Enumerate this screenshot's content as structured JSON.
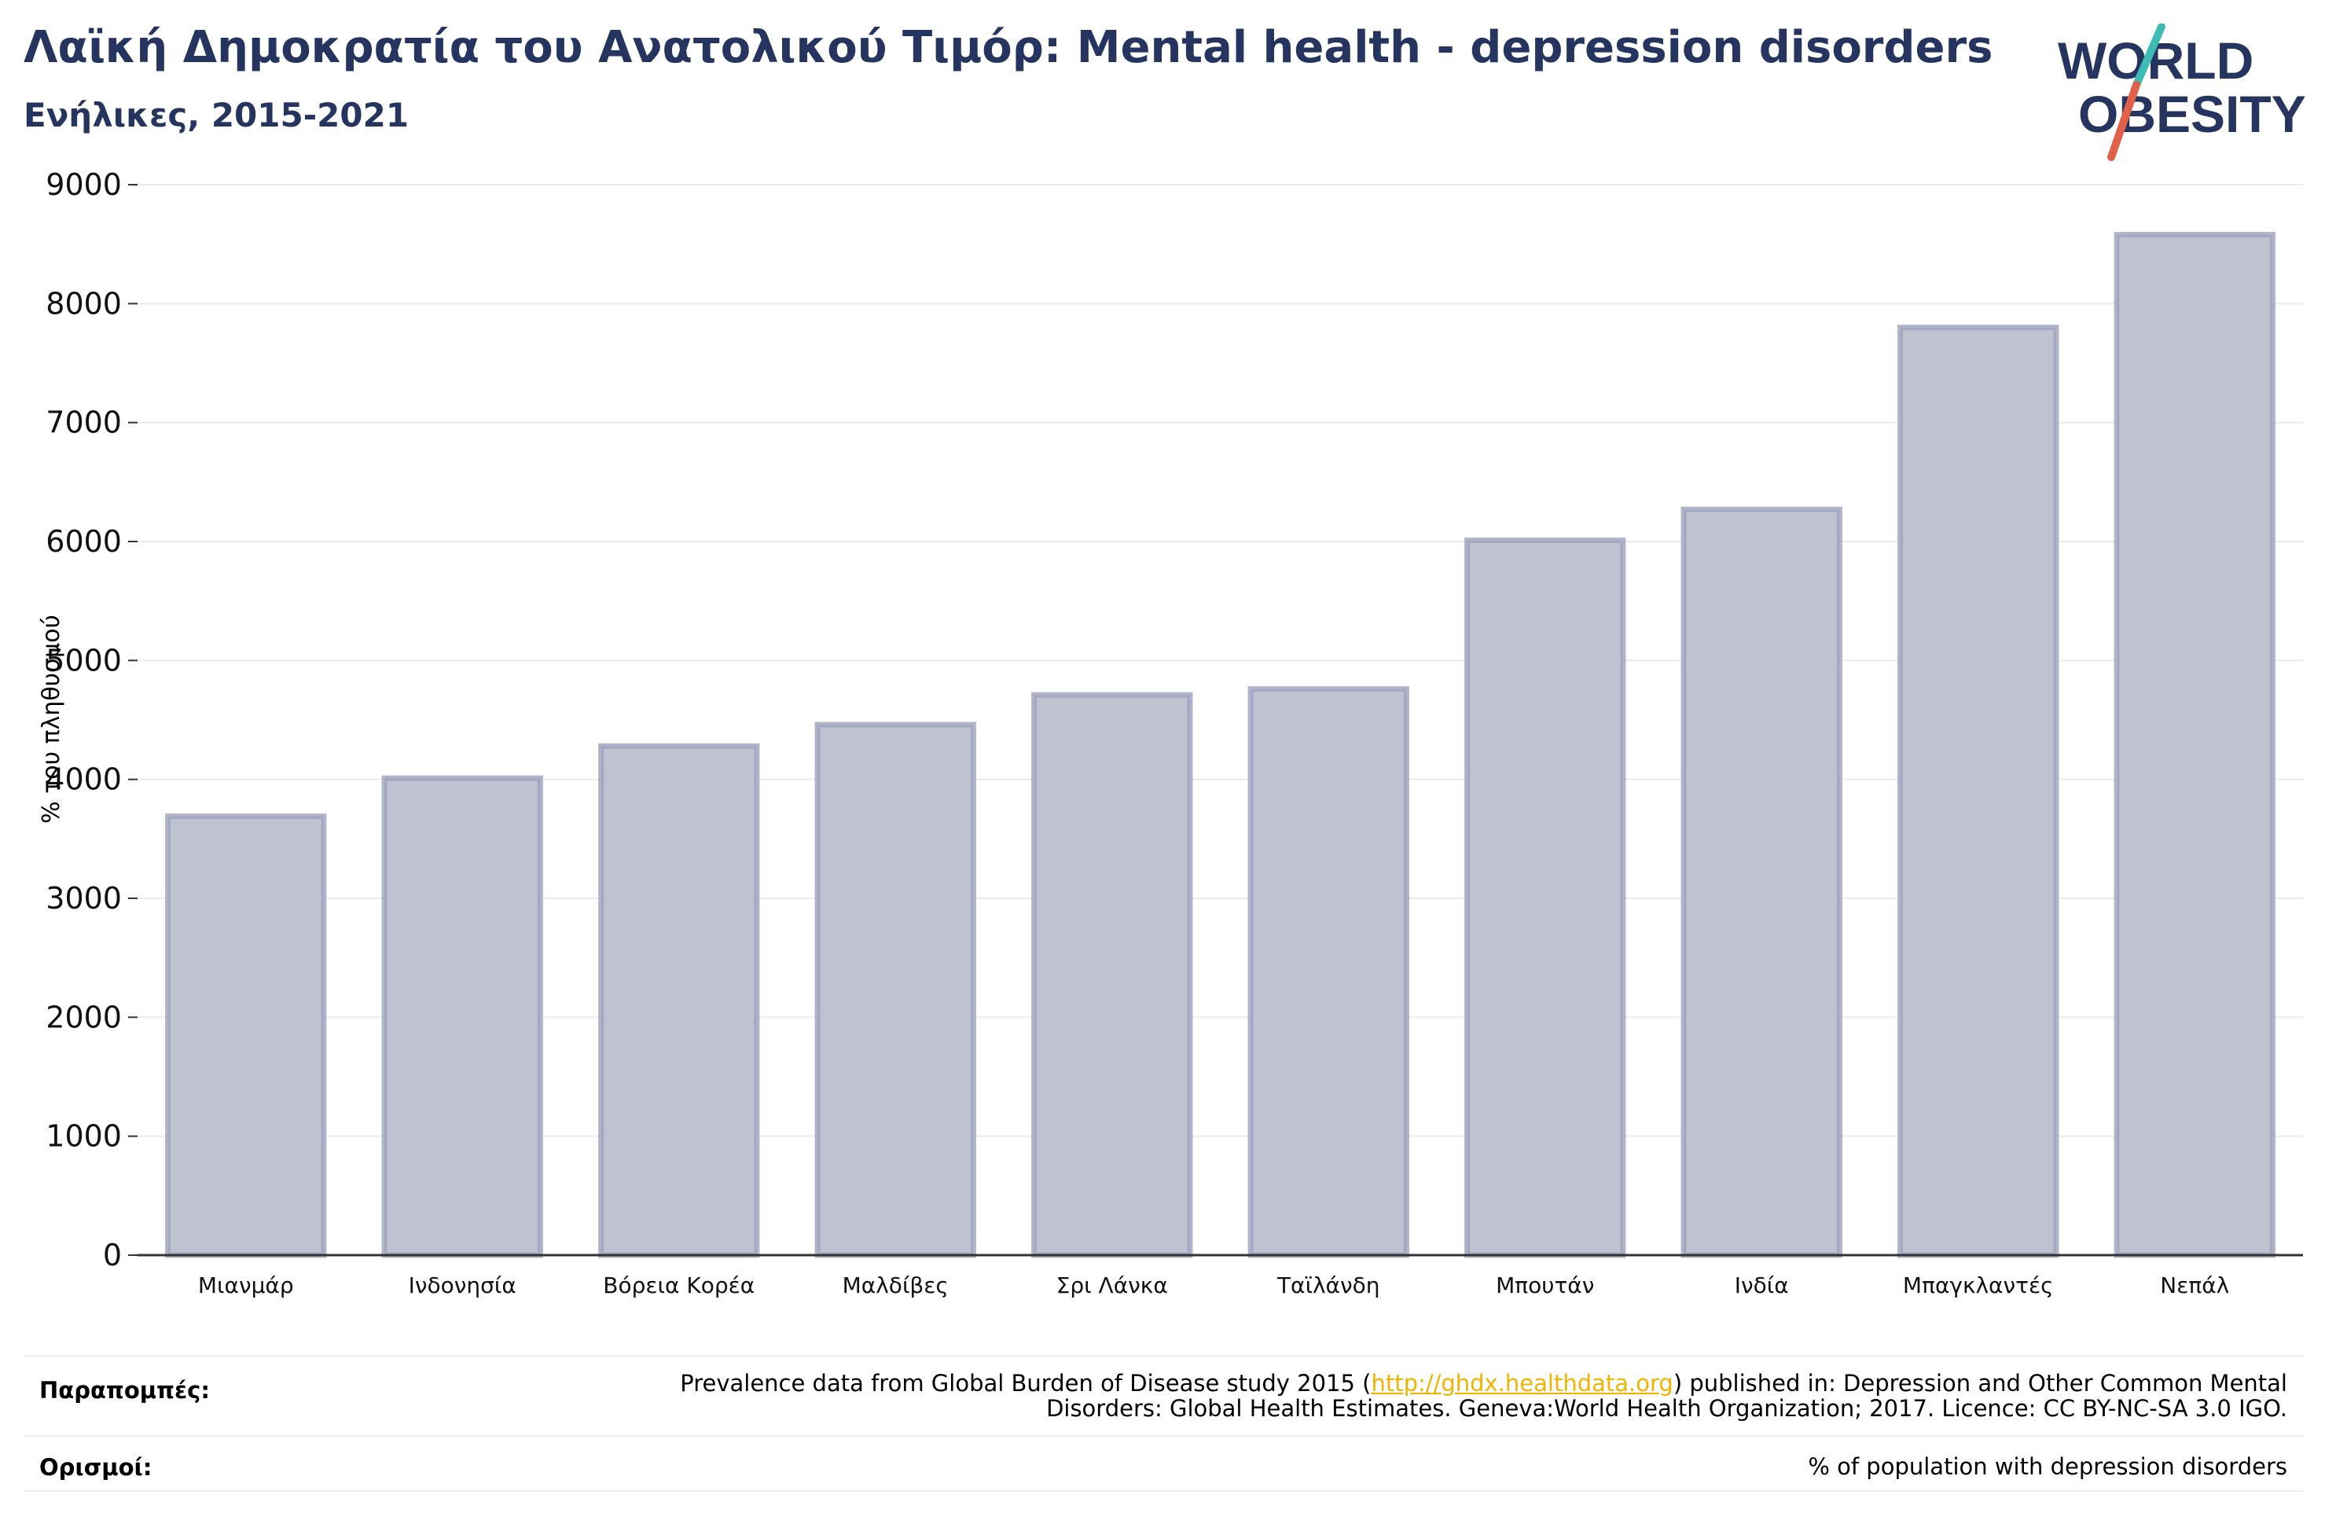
{
  "header": {
    "title": "Λαϊκή Δημοκρατία του Ανατολικού Τιμόρ: Mental health - depression disorders",
    "subtitle": "Ενήλικες, 2015-2021"
  },
  "logo": {
    "line1": "WORLD",
    "line2": "OBESITY"
  },
  "colors": {
    "bar_fill": "#bfc2cf",
    "bar_stroke": "#9ea3bd",
    "title": "#253560",
    "link": "#f0b400",
    "accent_teal": "#3cbcb4",
    "accent_red": "#e0604a"
  },
  "chart_data": {
    "type": "bar",
    "title": "Λαϊκή Δημοκρατία του Ανατολικού Τιμόρ: Mental health - depression disorders",
    "subtitle": "Ενήλικες, 2015-2021",
    "xlabel": "",
    "ylabel": "% του πληθυσμού",
    "ylim": [
      0,
      9000
    ],
    "yticks": [
      0,
      1000,
      2000,
      3000,
      4000,
      5000,
      6000,
      7000,
      8000,
      9000
    ],
    "grid": true,
    "categories": [
      "Μιανμάρ",
      "Ινδονησία",
      "Βόρεια Κορέα",
      "Μαλδίβες",
      "Σρι Λάνκα",
      "Ταϊλάνδη",
      "Μπουτάν",
      "Ινδία",
      "Μπαγκλαντές",
      "Νεπάλ"
    ],
    "values": [
      3690,
      4010,
      4280,
      4460,
      4710,
      4760,
      6010,
      6270,
      7800,
      8580
    ]
  },
  "footer": {
    "references_label": "Παραπομπές:",
    "references_text_before": "Prevalence data from Global Burden of Disease study 2015 (",
    "references_link": "http://ghdx.healthdata.org",
    "references_text_after": ") published in: Depression and Other Common Mental",
    "references_text_line2": "Disorders: Global Health Estimates. Geneva:World Health Organization; 2017. Licence: CC BY-NC-SA 3.0 IGO.",
    "definitions_label": "Ορισμοί:",
    "definitions_text": "% of population with depression disorders"
  }
}
